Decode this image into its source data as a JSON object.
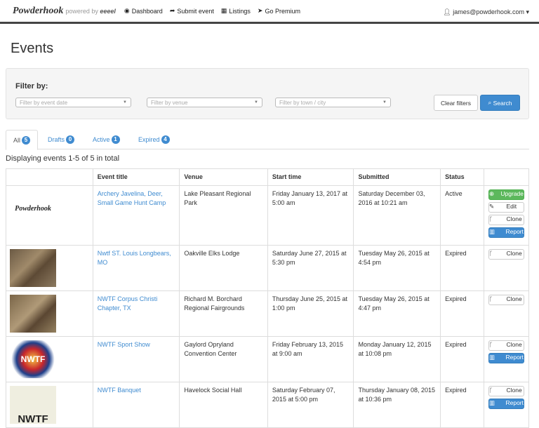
{
  "nav": {
    "logo": "Powderhook",
    "powered": "powered by",
    "powered_brand": "eeeel",
    "links": [
      {
        "icon": "dashboard-icon",
        "glyph": "◉",
        "label": "Dashboard"
      },
      {
        "icon": "share-icon",
        "glyph": "➦",
        "label": "Submit event"
      },
      {
        "icon": "calendar-icon",
        "glyph": "▦",
        "label": "Listings"
      },
      {
        "icon": "rocket-icon",
        "glyph": "➤",
        "label": "Go Premium"
      }
    ],
    "user": "james@powderhook.com"
  },
  "page_title": "Events",
  "filter": {
    "label": "Filter by:",
    "date_placeholder": "Filter by event date",
    "venue_placeholder": "Filter by venue",
    "town_placeholder": "Filter by town / city",
    "clear": "Clear filters",
    "search": "Search"
  },
  "tabs": [
    {
      "label": "All",
      "count": "5"
    },
    {
      "label": "Drafts",
      "count": "0"
    },
    {
      "label": "Active",
      "count": "1"
    },
    {
      "label": "Expired",
      "count": "4"
    }
  ],
  "summary": "Displaying events 1-5 of 5 in total",
  "columns": [
    "",
    "Event title",
    "Venue",
    "Start time",
    "Submitted",
    "Status",
    ""
  ],
  "rows": [
    {
      "title": "Archery Javelina, Deer, Small Game Hunt Camp",
      "venue": "Lake Pleasant Regional Park",
      "start": "Friday January 13, 2017 at 5:00 am",
      "submitted": "Saturday December 03, 2016 at 10:21 am",
      "status": "Active",
      "thumb_text": "Powderhook"
    },
    {
      "title": "Nwtf ST. Louis Longbears, MO",
      "venue": "Oakville Elks Lodge",
      "start": "Saturday June 27, 2015 at 5:30 pm",
      "submitted": "Tuesday May 26, 2015 at 4:54 pm",
      "status": "Expired"
    },
    {
      "title": "NWTF Corpus Christi Chapter, TX",
      "venue": "Richard M. Borchard Regional Fairgrounds",
      "start": "Thursday June 25, 2015 at 1:00 pm",
      "submitted": "Tuesday May 26, 2015 at 4:47 pm",
      "status": "Expired"
    },
    {
      "title": "NWTF Sport Show",
      "venue": "Gaylord Opryland Convention Center",
      "start": "Friday February 13, 2015 at 9:00 am",
      "submitted": "Monday January 12, 2015 at 10:08 pm",
      "status": "Expired",
      "thumb_text": "NWTF"
    },
    {
      "title": "NWTF Banquet",
      "venue": "Havelock Social Hall",
      "start": "Saturday February 07, 2015 at 5:00 pm",
      "submitted": "Thursday January 08, 2015 at 10:36 pm",
      "status": "Expired",
      "thumb_text": "NWTF"
    }
  ],
  "actions": {
    "upgrade": "Upgrade",
    "edit": "Edit",
    "clone": "Clone",
    "report": "Report"
  }
}
